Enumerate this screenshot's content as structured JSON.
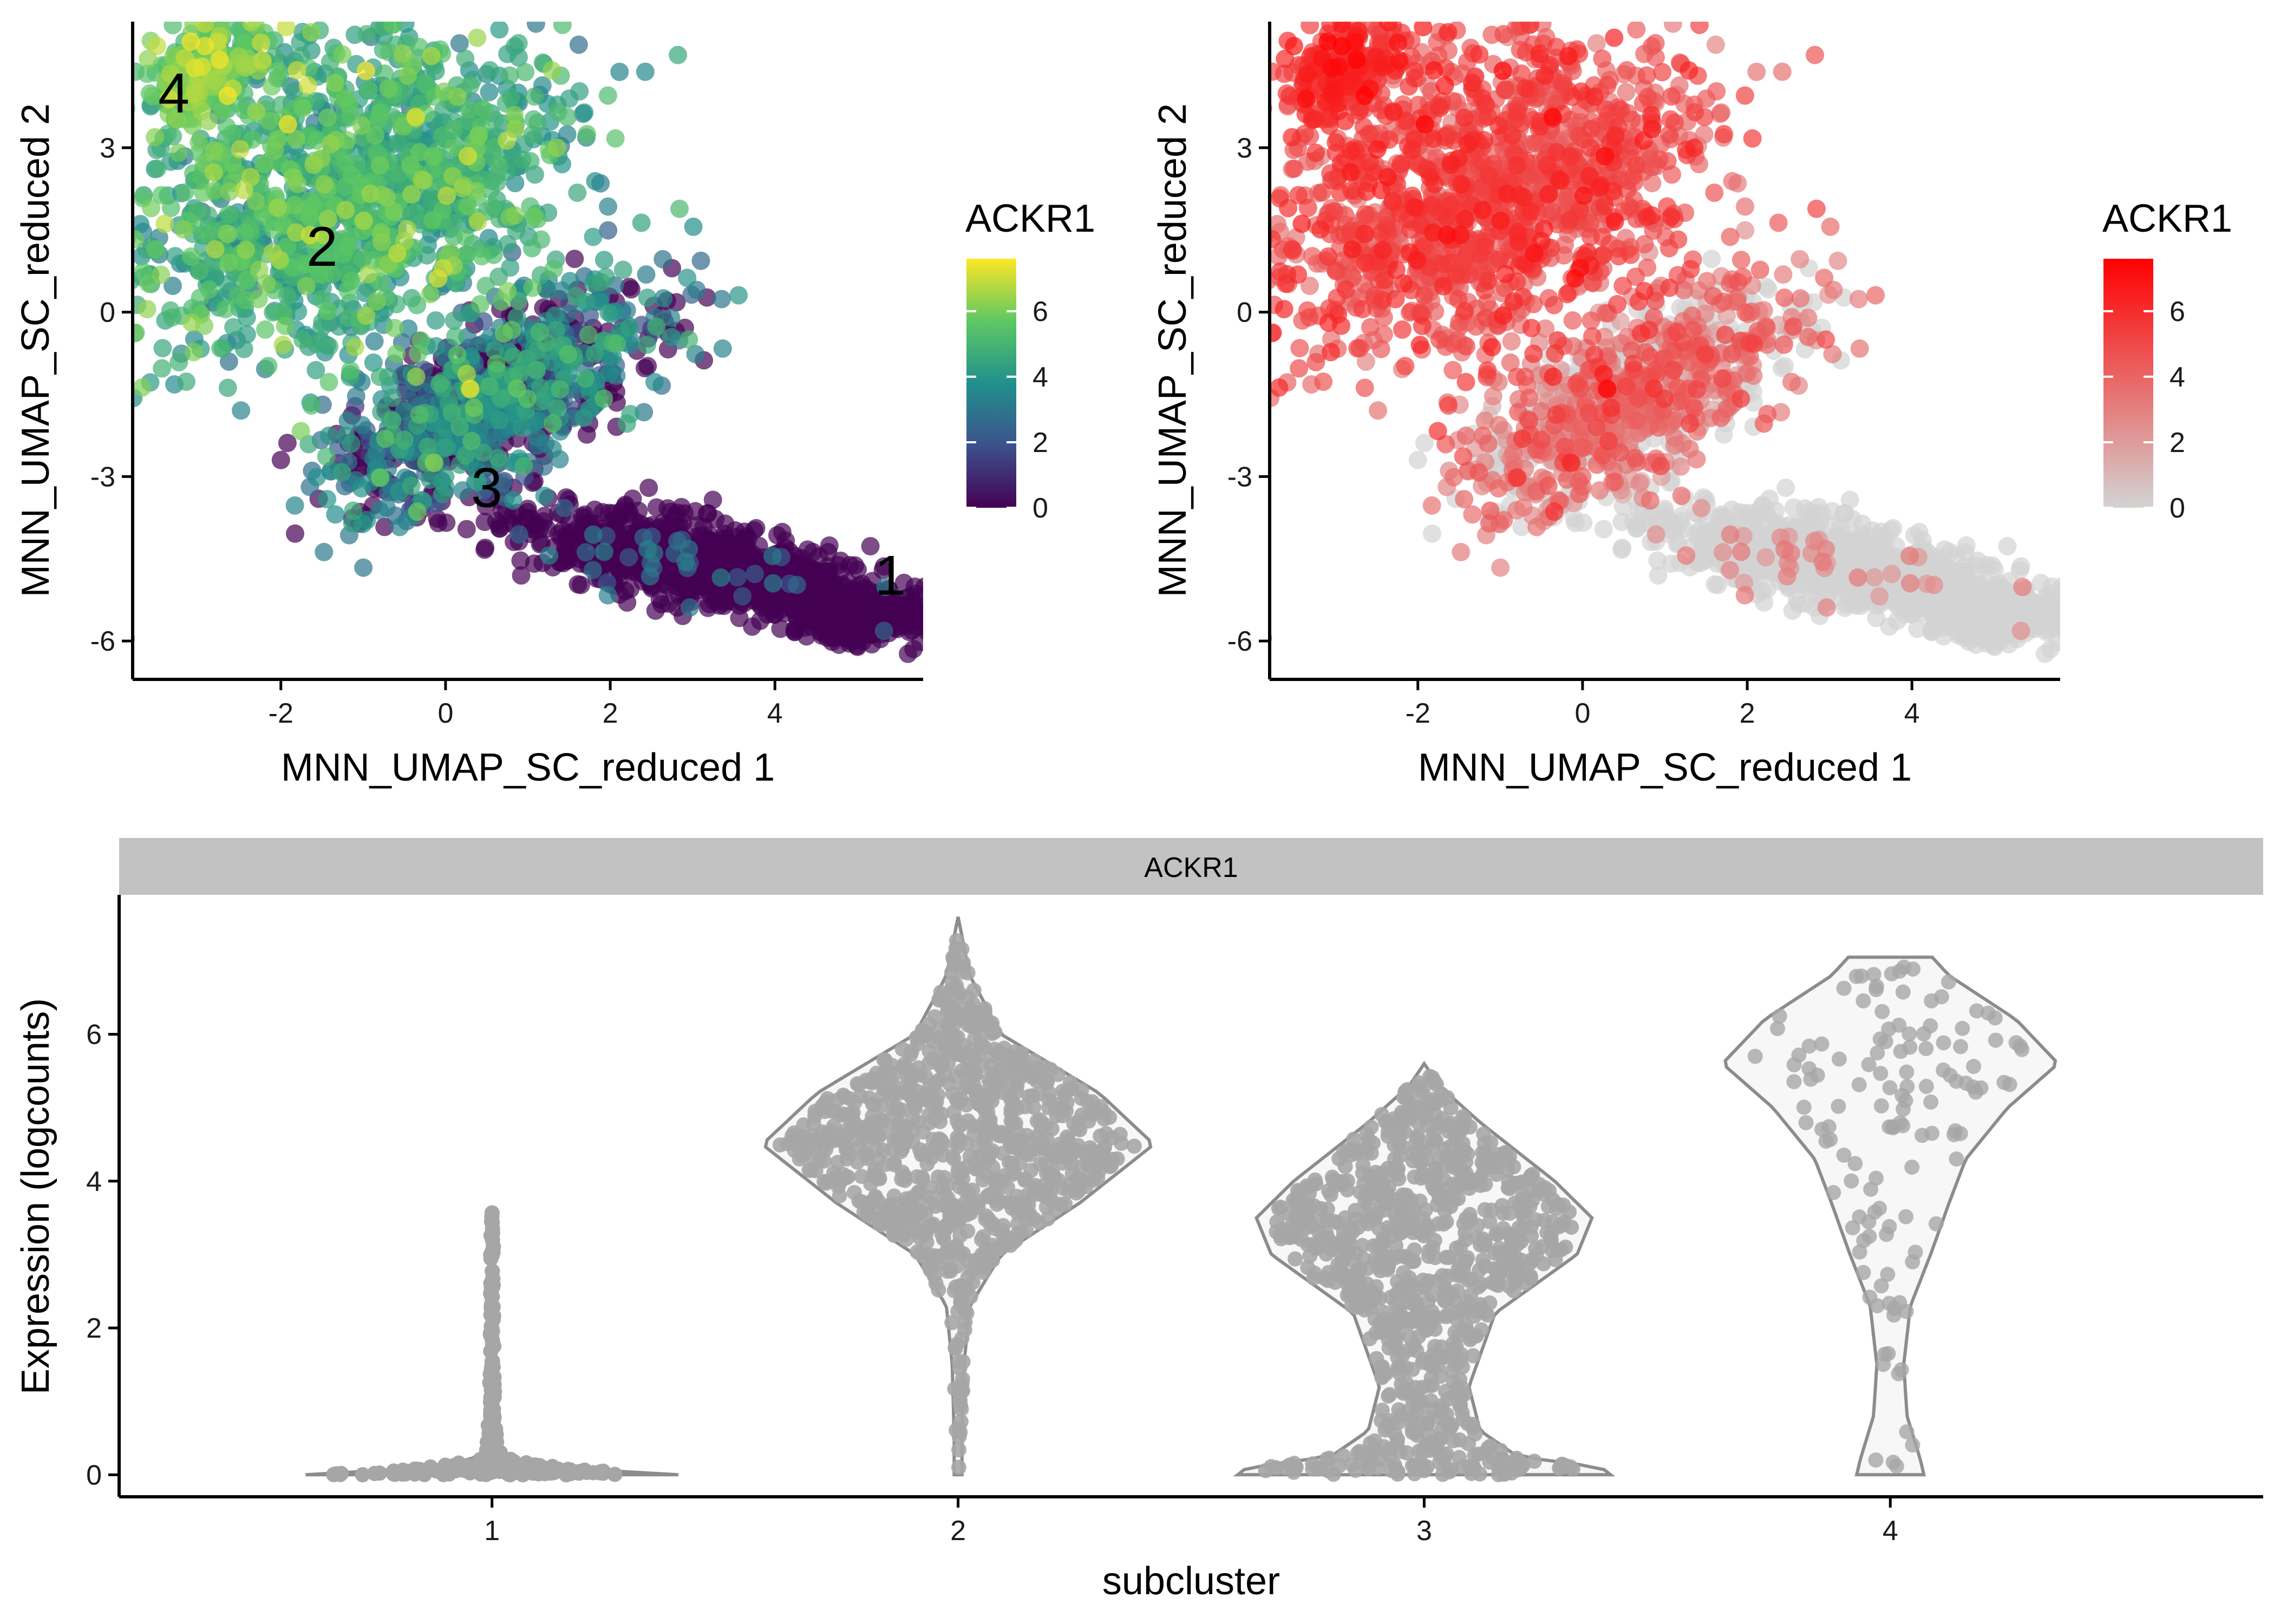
{
  "chart_data": [
    {
      "type": "scatter",
      "panel": "umap-viridis",
      "xlabel": "MNN_UMAP_SC_reduced 1",
      "ylabel": "MNN_UMAP_SC_reduced 2",
      "xlim": [
        -3.8,
        5.8
      ],
      "ylim": [
        -6.7,
        5.3
      ],
      "x_ticks": [
        -2,
        0,
        2,
        4
      ],
      "x_tick_labels": [
        "-2",
        "0",
        "2",
        "4"
      ],
      "y_ticks": [
        -6,
        -3,
        0,
        3
      ],
      "y_tick_labels": [
        "-6",
        "-3",
        "0",
        "3"
      ],
      "color_scale": {
        "name": "viridis",
        "stops": [
          "#440154",
          "#3b528b",
          "#21908c",
          "#5dc863",
          "#fde725"
        ],
        "min": 0,
        "max": 7.6
      },
      "legend": {
        "title": "ACKR1",
        "placement": "right",
        "ticks": [
          0,
          2,
          4,
          6
        ],
        "tick_labels": [
          "0",
          "2",
          "4",
          "6"
        ]
      },
      "cluster_labels": [
        {
          "text": "4",
          "x": -3.3,
          "y": 4.0
        },
        {
          "text": "2",
          "x": -1.5,
          "y": 1.2
        },
        {
          "text": "3",
          "x": 0.5,
          "y": -3.2
        },
        {
          "text": "1",
          "x": 5.4,
          "y": -4.8
        }
      ],
      "grid": false
    },
    {
      "type": "scatter",
      "panel": "umap-red",
      "xlabel": "MNN_UMAP_SC_reduced 1",
      "ylabel": "MNN_UMAP_SC_reduced 2",
      "xlim": [
        -3.8,
        5.8
      ],
      "ylim": [
        -6.7,
        5.3
      ],
      "x_ticks": [
        -2,
        0,
        2,
        4
      ],
      "x_tick_labels": [
        "-2",
        "0",
        "2",
        "4"
      ],
      "y_ticks": [
        -6,
        -3,
        0,
        3
      ],
      "y_tick_labels": [
        "-6",
        "-3",
        "0",
        "3"
      ],
      "color_scale": {
        "name": "grey-to-red",
        "stops": [
          "#d3d3d3",
          "#ff0000"
        ],
        "min": 0,
        "max": 7.6
      },
      "legend": {
        "title": "ACKR1",
        "placement": "right",
        "ticks": [
          0,
          2,
          4,
          6
        ],
        "tick_labels": [
          "0",
          "2",
          "4",
          "6"
        ]
      },
      "grid": false
    },
    {
      "type": "violin",
      "panel": "violin",
      "facet_label": "ACKR1",
      "xlabel": "subcluster",
      "ylabel": "Expression (logcounts)",
      "categories": [
        "1",
        "2",
        "3",
        "4"
      ],
      "ylim": [
        -0.3,
        7.9
      ],
      "y_ticks": [
        0,
        2,
        4,
        6
      ],
      "y_tick_labels": [
        "0",
        "2",
        "4",
        "6"
      ],
      "point_color": "#a6a6a6",
      "outline_color": "#8c8c8c",
      "fill_color": "#f7f7f7",
      "distributions": [
        {
          "category": "1",
          "min": 0,
          "max": 3.65,
          "max_half_width": 0.4,
          "profile": [
            [
              0,
              1.0
            ],
            [
              0.08,
              0.45
            ],
            [
              0.2,
              0.12
            ],
            [
              0.35,
              0.03
            ],
            [
              1.0,
              0.015
            ],
            [
              2.0,
              0.01
            ],
            [
              3.0,
              0.01
            ],
            [
              3.65,
              0.0
            ]
          ]
        },
        {
          "category": "2",
          "min": 0,
          "max": 7.6,
          "max_half_width": 0.42,
          "profile": [
            [
              0,
              0.02
            ],
            [
              0.5,
              0.02
            ],
            [
              1.5,
              0.03
            ],
            [
              2.3,
              0.06
            ],
            [
              3.0,
              0.22
            ],
            [
              3.7,
              0.62
            ],
            [
              4.5,
              1.0
            ],
            [
              5.2,
              0.72
            ],
            [
              6.0,
              0.22
            ],
            [
              6.8,
              0.06
            ],
            [
              7.6,
              0.0
            ]
          ]
        },
        {
          "category": "3",
          "min": 0,
          "max": 5.6,
          "max_half_width": 0.4,
          "profile": [
            [
              0,
              1.0
            ],
            [
              0.1,
              0.95
            ],
            [
              0.25,
              0.5
            ],
            [
              0.6,
              0.3
            ],
            [
              1.2,
              0.24
            ],
            [
              2.2,
              0.38
            ],
            [
              3.0,
              0.82
            ],
            [
              3.5,
              0.9
            ],
            [
              4.0,
              0.7
            ],
            [
              4.8,
              0.3
            ],
            [
              5.3,
              0.08
            ],
            [
              5.6,
              0.0
            ]
          ]
        },
        {
          "category": "4",
          "min": 0,
          "max": 7.05,
          "max_half_width": 0.36,
          "profile": [
            [
              0,
              0.2
            ],
            [
              0.2,
              0.18
            ],
            [
              0.8,
              0.1
            ],
            [
              1.5,
              0.08
            ],
            [
              2.3,
              0.12
            ],
            [
              3.0,
              0.24
            ],
            [
              3.7,
              0.35
            ],
            [
              4.3,
              0.45
            ],
            [
              5.0,
              0.7
            ],
            [
              5.6,
              1.0
            ],
            [
              6.2,
              0.75
            ],
            [
              6.8,
              0.35
            ],
            [
              7.05,
              0.25
            ]
          ]
        }
      ],
      "grid": false
    }
  ]
}
